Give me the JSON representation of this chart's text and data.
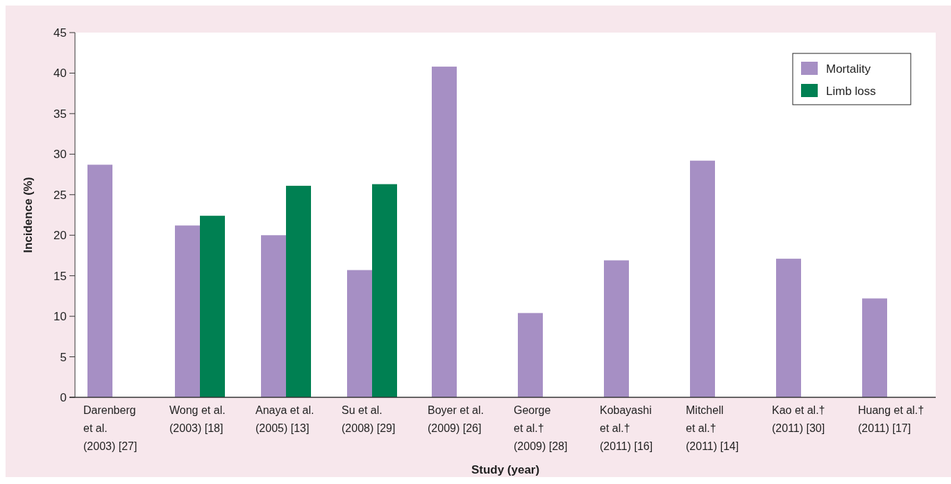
{
  "chart_data": {
    "type": "bar",
    "xlabel": "Study (year)",
    "ylabel": "Incidence (%)",
    "categories": [
      "Darenberg\net al.\n(2003) [27]",
      "Wong et al.\n(2003) [18]",
      "Anaya et al.\n(2005) [13]",
      "Su et al.\n(2008) [29]",
      "Boyer et al.\n(2009) [26]",
      "George\net al.†\n(2009) [28]",
      "Kobayashi\net al.†\n(2011) [16]",
      "Mitchell\net al.†\n(2011) [14]",
      "Kao et al.†\n(2011) [30]",
      "Huang et al.†\n(2011) [17]"
    ],
    "series": [
      {
        "name": "Mortality",
        "color": "#a68fc4",
        "values": [
          28.7,
          21.2,
          20.0,
          15.7,
          40.8,
          10.4,
          16.9,
          29.2,
          17.1,
          12.2
        ]
      },
      {
        "name": "Limb loss",
        "color": "#008052",
        "values": [
          null,
          22.4,
          26.1,
          26.3,
          null,
          null,
          null,
          null,
          null,
          null
        ]
      }
    ],
    "ylim": [
      0,
      45
    ],
    "yticks": [
      0,
      5,
      10,
      15,
      20,
      25,
      30,
      35,
      40,
      45
    ],
    "grid": false,
    "legend": "top right"
  }
}
